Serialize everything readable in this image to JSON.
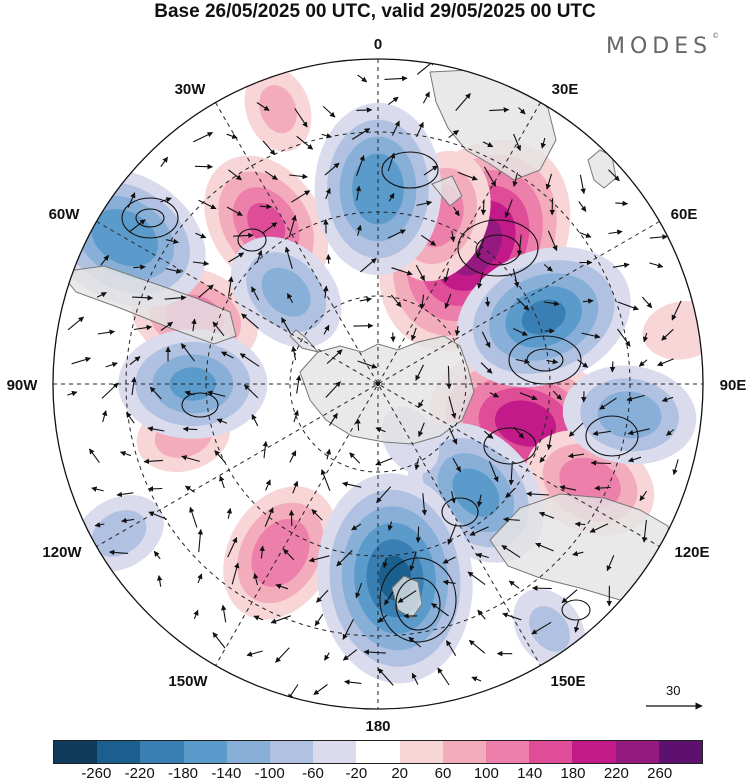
{
  "title": "Base 26/05/2025 00 UTC, valid 29/05/2025 00 UTC",
  "brand": {
    "name": "MODES",
    "mark": "©"
  },
  "lon_labels": [
    "0",
    "30E",
    "60E",
    "90E",
    "120E",
    "150E",
    "180",
    "150W",
    "120W",
    "90W",
    "60W",
    "30W"
  ],
  "reference_vector": {
    "value": "30"
  },
  "colorbar": {
    "colors": [
      "#0e3b5a",
      "#1a5f8d",
      "#3a7fb4",
      "#5b9bcc",
      "#88afd8",
      "#b1c1e1",
      "#dadcee",
      "#ffffff",
      "#f8d6d8",
      "#f3acbc",
      "#ed7fab",
      "#df4d98",
      "#c21a89",
      "#941a80",
      "#5d106d"
    ],
    "tick_labels": [
      "-260",
      "-220",
      "-180",
      "-140",
      "-100",
      "-60",
      "-20",
      "20",
      "60",
      "100",
      "140",
      "180",
      "220",
      "260"
    ]
  },
  "anomaly_field": [
    {
      "name": "center-1",
      "lon": 35,
      "colat": 0.52,
      "value": 245
    },
    {
      "name": "center-2",
      "lon": 20,
      "colat": 0.55,
      "value": 120
    },
    {
      "name": "center-3",
      "lon": 105,
      "colat": 0.47,
      "value": 200
    },
    {
      "name": "center-4",
      "lon": 115,
      "colat": 0.72,
      "value": 120
    },
    {
      "name": "center-5",
      "lon": 325,
      "colat": 0.6,
      "value": 140
    },
    {
      "name": "center-6",
      "lon": 290,
      "colat": 0.6,
      "value": 115
    },
    {
      "name": "center-7",
      "lon": 210,
      "colat": 0.6,
      "value": 130
    },
    {
      "name": "center-8",
      "lon": 255,
      "colat": 0.62,
      "value": 70
    },
    {
      "name": "center-9",
      "lon": 340,
      "colat": 0.9,
      "value": 60
    },
    {
      "name": "center-10",
      "lon": 80,
      "colat": 0.95,
      "value": 50
    },
    {
      "name": "center-11",
      "lon": 0,
      "colat": 0.6,
      "value": -170
    },
    {
      "name": "center-12",
      "lon": 68,
      "colat": 0.55,
      "value": -180
    },
    {
      "name": "center-13",
      "lon": 97,
      "colat": 0.78,
      "value": -120
    },
    {
      "name": "center-14",
      "lon": 138,
      "colat": 0.45,
      "value": -150
    },
    {
      "name": "center-15",
      "lon": 175,
      "colat": 0.6,
      "value": -220
    },
    {
      "name": "center-16",
      "lon": 300,
      "colat": 0.9,
      "value": -170
    },
    {
      "name": "center-17",
      "lon": 270,
      "colat": 0.57,
      "value": -140
    },
    {
      "name": "center-18",
      "lon": 315,
      "colat": 0.4,
      "value": -110
    },
    {
      "name": "center-19",
      "lon": 240,
      "colat": 0.92,
      "value": -70
    },
    {
      "name": "center-20",
      "lon": 145,
      "colat": 0.92,
      "value": -60
    },
    {
      "name": "center-21",
      "lon": 150,
      "colat": 0.2,
      "value": -40
    }
  ]
}
